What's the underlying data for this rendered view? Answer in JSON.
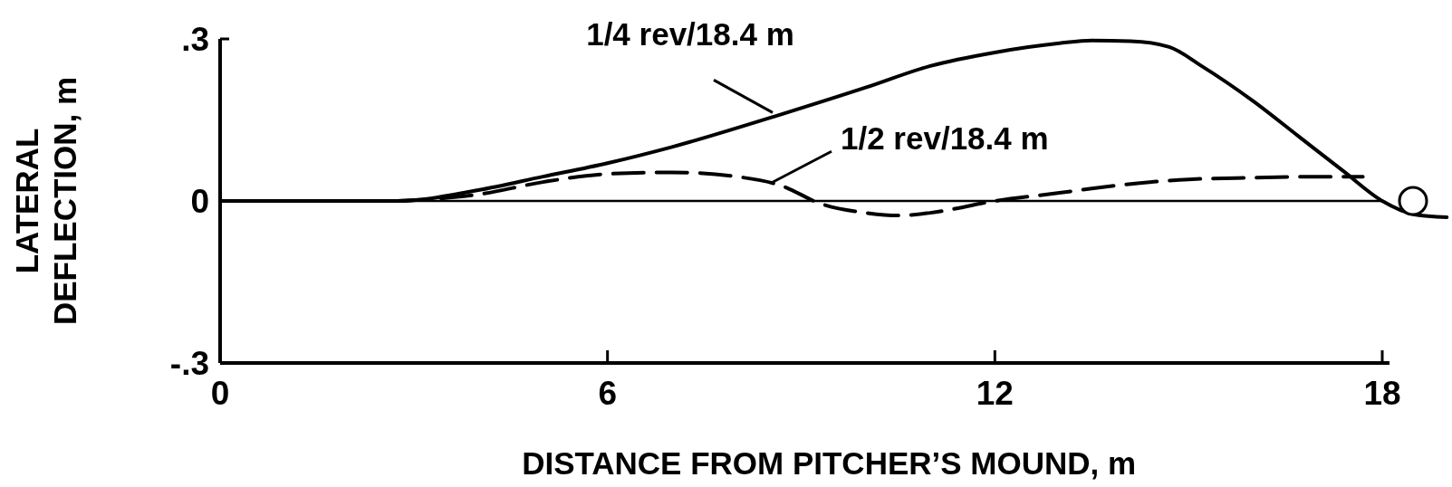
{
  "chart_data": {
    "type": "line",
    "xlabel": "DISTANCE FROM PITCHER’S MOUND, m",
    "ylabel": "LATERAL\nDEFLECTION, m",
    "xlim": [
      0,
      19
    ],
    "xticks": [
      0,
      6,
      12,
      18
    ],
    "ylim": [
      -0.3,
      0.3
    ],
    "yticks": [
      {
        "value": -0.3,
        "label": "-.3"
      },
      0,
      {
        "value": 0.3,
        "label": ".3"
      }
    ],
    "grid": false,
    "ref_lines": [
      {
        "axis": "y",
        "value": 0,
        "color": "#000000"
      }
    ],
    "series": [
      {
        "color": "#000000",
        "line_style": "solid",
        "x": [
          0,
          2.75,
          4,
          5,
          6,
          7,
          8.6,
          10,
          11,
          12,
          13,
          13.5,
          14.1,
          14.7,
          15.2,
          16,
          16.7,
          17.4,
          18,
          18.5,
          19
        ],
        "values": [
          0,
          0,
          0.02,
          0.045,
          0.07,
          0.1,
          0.157,
          0.21,
          0.25,
          0.275,
          0.292,
          0.297,
          0.296,
          0.285,
          0.25,
          0.185,
          0.12,
          0.055,
          0,
          -0.025,
          -0.03
        ]
      },
      {
        "color": "#000000",
        "line_style": "dashed",
        "x": [
          2.75,
          4,
          5,
          6,
          7,
          8,
          8.7,
          9.3,
          10,
          10.5,
          11,
          12,
          13,
          13.5,
          14,
          15,
          16,
          17,
          17.7
        ],
        "values": [
          0,
          0.012,
          0.035,
          0.05,
          0.053,
          0.045,
          0.028,
          -0.005,
          -0.022,
          -0.027,
          -0.022,
          0,
          0.015,
          0.023,
          0.03,
          0.04,
          0.043,
          0.045,
          0.045
        ]
      }
    ],
    "annotations": [
      {
        "text": "1/4 rev/18.4 m",
        "x": 8.6,
        "y": 0.157
      },
      {
        "text": "1/2 rev/18.4 m",
        "x": 8.6,
        "y": 0.028
      }
    ]
  }
}
